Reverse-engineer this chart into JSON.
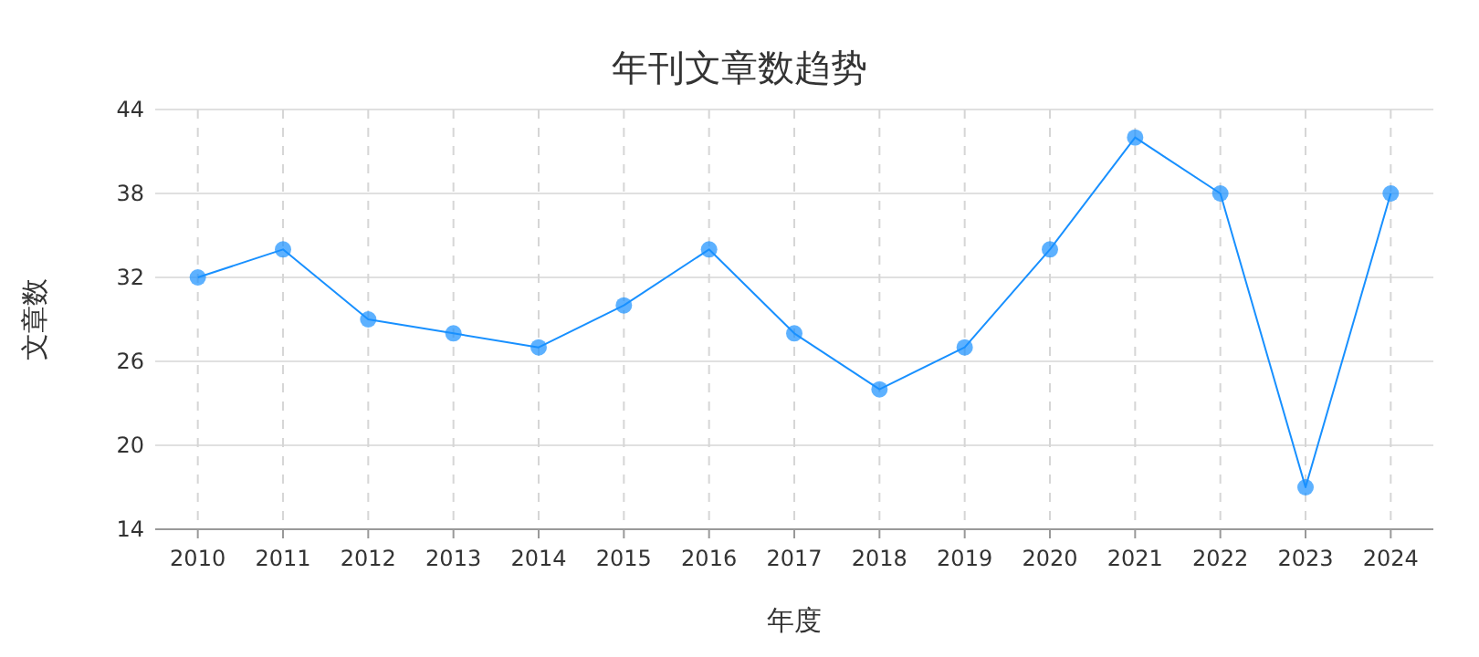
{
  "chart_data": {
    "type": "line",
    "title": "年刊文章数趋势",
    "xlabel": "年度",
    "ylabel": "文章数",
    "categories": [
      "2010",
      "2011",
      "2012",
      "2013",
      "2014",
      "2015",
      "2016",
      "2017",
      "2018",
      "2019",
      "2020",
      "2021",
      "2022",
      "2023",
      "2024"
    ],
    "series": [
      {
        "color": "#1890ff",
        "values": [
          32,
          34,
          29,
          28,
          27,
          30,
          34,
          28,
          24,
          27,
          34,
          42,
          38,
          17,
          38
        ]
      }
    ],
    "ylim": [
      14,
      44
    ],
    "yticks": [
      14,
      20,
      26,
      32,
      38,
      44
    ],
    "grid": true,
    "marker": "circle",
    "line_style": "solid"
  }
}
